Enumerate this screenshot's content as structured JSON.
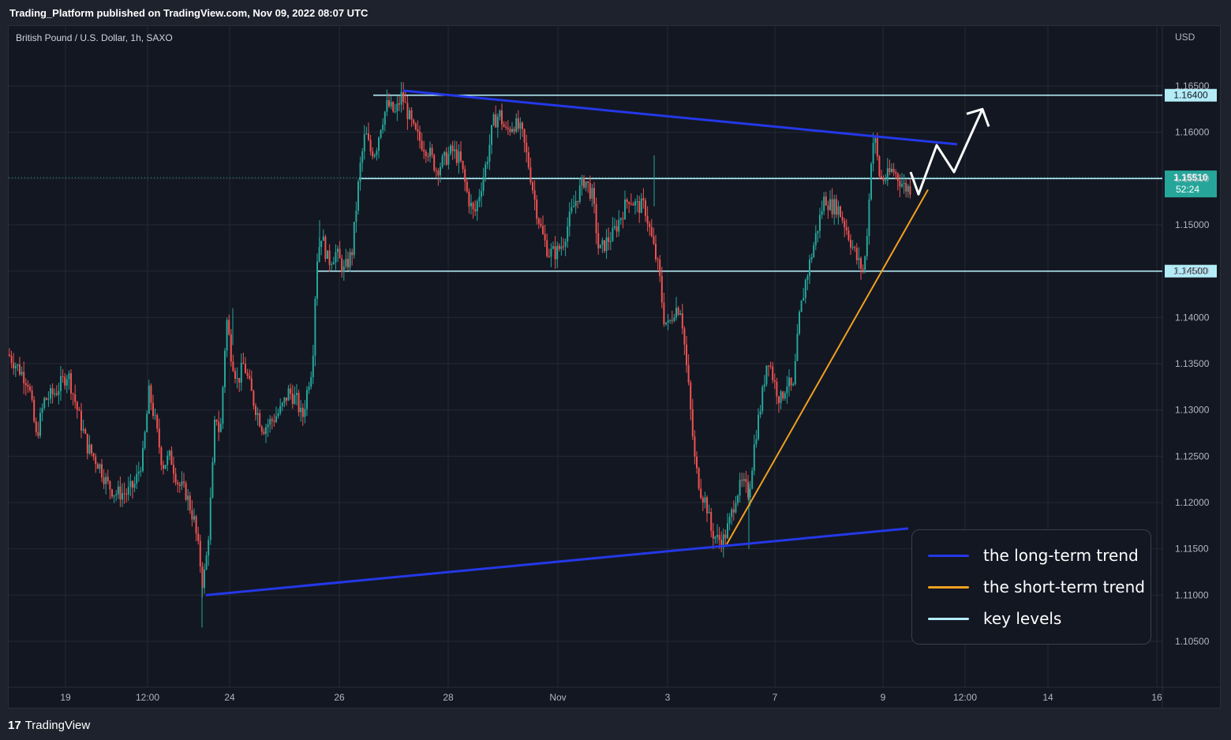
{
  "header": {
    "published": "Trading_Platform published on TradingView.com, Nov 09, 2022 08:07 UTC"
  },
  "footer": {
    "logo_glyph": "17",
    "brand": "TradingView"
  },
  "chart_data": {
    "type": "candlestick",
    "title": "British Pound / U.S. Dollar, 1h, SAXO",
    "currency": "USD",
    "ylim": [
      1.1,
      1.17
    ],
    "y_ticks": [
      "1.10500",
      "1.11000",
      "1.11500",
      "1.12000",
      "1.12500",
      "1.13000",
      "1.13500",
      "1.14000",
      "1.14500",
      "1.15000",
      "1.15500",
      "1.16000",
      "1.16500"
    ],
    "x_ticks": [
      "19",
      "12:00",
      "24",
      "26",
      "28",
      "Nov",
      "3",
      "7",
      "9",
      "12:00",
      "14",
      "16"
    ],
    "last_price": {
      "value": "1.15510",
      "countdown": "52:24",
      "color": "#26a69a"
    },
    "key_levels": [
      {
        "value": "1.16400",
        "y": 1.164
      },
      {
        "value": "1.15500",
        "y": 1.155
      },
      {
        "value": "1.14500",
        "y": 1.145
      }
    ],
    "colors": {
      "up": "#26a69a",
      "down": "#ef5350",
      "long_trend": "#2438e8",
      "short_trend": "#f0a020",
      "key_level": "#b3ecf7",
      "projection": "#ffffff"
    },
    "legend": [
      {
        "label": "the long-term trend",
        "color": "#2438e8"
      },
      {
        "label": "the short-term trend",
        "color": "#f0a020"
      },
      {
        "label": "key levels",
        "color": "#b3ecf7"
      }
    ],
    "price_path": [
      [
        0,
        1.136
      ],
      [
        25,
        1.133
      ],
      [
        35,
        1.127
      ],
      [
        45,
        1.131
      ],
      [
        60,
        1.132
      ],
      [
        75,
        1.134
      ],
      [
        90,
        1.129
      ],
      [
        100,
        1.126
      ],
      [
        115,
        1.124
      ],
      [
        125,
        1.122
      ],
      [
        135,
        1.121
      ],
      [
        150,
        1.121
      ],
      [
        160,
        1.122
      ],
      [
        170,
        1.125
      ],
      [
        178,
        1.132
      ],
      [
        185,
        1.129
      ],
      [
        195,
        1.124
      ],
      [
        205,
        1.125
      ],
      [
        215,
        1.122
      ],
      [
        225,
        1.121
      ],
      [
        235,
        1.118
      ],
      [
        242,
        1.114
      ],
      [
        246,
        1.111
      ],
      [
        252,
        1.115
      ],
      [
        258,
        1.123
      ],
      [
        262,
        1.13
      ],
      [
        268,
        1.127
      ],
      [
        276,
        1.14
      ],
      [
        282,
        1.136
      ],
      [
        290,
        1.133
      ],
      [
        298,
        1.135
      ],
      [
        310,
        1.131
      ],
      [
        322,
        1.128
      ],
      [
        335,
        1.129
      ],
      [
        345,
        1.13
      ],
      [
        355,
        1.132
      ],
      [
        365,
        1.131
      ],
      [
        372,
        1.129
      ],
      [
        380,
        1.133
      ],
      [
        385,
        1.135
      ],
      [
        390,
        1.146
      ],
      [
        396,
        1.149
      ],
      [
        405,
        1.146
      ],
      [
        415,
        1.147
      ],
      [
        425,
        1.145
      ],
      [
        435,
        1.147
      ],
      [
        445,
        1.156
      ],
      [
        452,
        1.16
      ],
      [
        458,
        1.158
      ],
      [
        465,
        1.158
      ],
      [
        472,
        1.161
      ],
      [
        480,
        1.163
      ],
      [
        490,
        1.162
      ],
      [
        498,
        1.164
      ],
      [
        506,
        1.162
      ],
      [
        514,
        1.16
      ],
      [
        522,
        1.159
      ],
      [
        532,
        1.158
      ],
      [
        542,
        1.156
      ],
      [
        552,
        1.157
      ],
      [
        562,
        1.158
      ],
      [
        572,
        1.157
      ],
      [
        582,
        1.153
      ],
      [
        590,
        1.151
      ],
      [
        598,
        1.154
      ],
      [
        606,
        1.157
      ],
      [
        614,
        1.161
      ],
      [
        622,
        1.162
      ],
      [
        630,
        1.16
      ],
      [
        640,
        1.161
      ],
      [
        650,
        1.16
      ],
      [
        660,
        1.156
      ],
      [
        668,
        1.152
      ],
      [
        676,
        1.149
      ],
      [
        684,
        1.147
      ],
      [
        694,
        1.147
      ],
      [
        702,
        1.148
      ],
      [
        712,
        1.151
      ],
      [
        720,
        1.153
      ],
      [
        730,
        1.155
      ],
      [
        740,
        1.153
      ],
      [
        748,
        1.147
      ],
      [
        756,
        1.148
      ],
      [
        766,
        1.149
      ],
      [
        776,
        1.151
      ],
      [
        786,
        1.153
      ],
      [
        796,
        1.152
      ],
      [
        806,
        1.152
      ],
      [
        816,
        1.148
      ],
      [
        824,
        1.145
      ],
      [
        830,
        1.14
      ],
      [
        836,
        1.139
      ],
      [
        844,
        1.141
      ],
      [
        852,
        1.141
      ],
      [
        862,
        1.132
      ],
      [
        870,
        1.124
      ],
      [
        878,
        1.121
      ],
      [
        884,
        1.12
      ],
      [
        890,
        1.117
      ],
      [
        898,
        1.116
      ],
      [
        906,
        1.116
      ],
      [
        914,
        1.118
      ],
      [
        922,
        1.121
      ],
      [
        930,
        1.122
      ],
      [
        938,
        1.121
      ],
      [
        946,
        1.127
      ],
      [
        954,
        1.131
      ],
      [
        962,
        1.136
      ],
      [
        970,
        1.133
      ],
      [
        978,
        1.131
      ],
      [
        986,
        1.133
      ],
      [
        994,
        1.132
      ],
      [
        1002,
        1.14
      ],
      [
        1010,
        1.144
      ],
      [
        1018,
        1.147
      ],
      [
        1026,
        1.15
      ],
      [
        1034,
        1.153
      ],
      [
        1042,
        1.152
      ],
      [
        1050,
        1.152
      ],
      [
        1060,
        1.15
      ],
      [
        1068,
        1.148
      ],
      [
        1076,
        1.146
      ],
      [
        1084,
        1.145
      ],
      [
        1090,
        1.152
      ],
      [
        1094,
        1.159
      ],
      [
        1098,
        1.159
      ],
      [
        1104,
        1.155
      ],
      [
        1112,
        1.155
      ],
      [
        1120,
        1.156
      ],
      [
        1128,
        1.155
      ],
      [
        1136,
        1.154
      ],
      [
        1144,
        1.154
      ]
    ],
    "long_trend_lines": [
      {
        "x": [
          500,
          1202
        ],
        "y": [
          1.1645,
          1.1587
        ]
      },
      {
        "x": [
          250,
          1140
        ],
        "y": [
          1.11,
          1.1172
        ]
      }
    ],
    "short_trend_line": {
      "x": [
        910,
        1165
      ],
      "y": [
        1.1155,
        1.1538
      ]
    },
    "projection_path": {
      "x": [
        1143,
        1153,
        1176,
        1198,
        1234
      ],
      "y": [
        1.1557,
        1.1533,
        1.1586,
        1.1557,
        1.1625
      ]
    }
  }
}
